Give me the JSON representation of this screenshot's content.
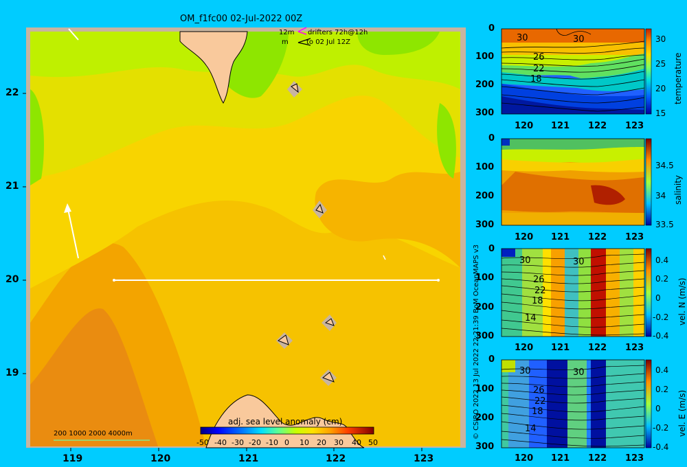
{
  "map": {
    "title": "OM_f1fc00 02-Jul-2022 00Z",
    "drifter_line1_left": "12m",
    "drifter_line1_right": "drifters 72h@12h",
    "drifter_line2_left": "m",
    "drifter_line2_right": "to 02 Jul 12Z",
    "depth_scale": "200  1000  2000  4000m",
    "colorbar": {
      "title": "adj. sea level anomaly (cm)",
      "ticks": [
        "-50",
        "-40",
        "-30",
        "-20",
        "-10",
        "0",
        "10",
        "20",
        "30",
        "40",
        "50"
      ]
    },
    "x_ticks": [
      "119",
      "120",
      "121",
      "122",
      "123"
    ],
    "y_ticks": [
      "22",
      "21",
      "20",
      "19"
    ],
    "credit": "© CSIRO 2022    13 Jul 2022 22:21:39 BoM OceanMAPS v3"
  },
  "panels": [
    {
      "label": "temperature",
      "depth_ticks": [
        "0",
        "100",
        "200",
        "300"
      ],
      "x_ticks": [
        "120",
        "121",
        "122",
        "123"
      ],
      "cbar_ticks": [
        "30",
        "25",
        "20",
        "15"
      ],
      "contour_labels": [
        "30",
        "30",
        "26",
        "22",
        "18"
      ]
    },
    {
      "label": "salinity",
      "depth_ticks": [
        "0",
        "100",
        "200",
        "300"
      ],
      "x_ticks": [
        "120",
        "121",
        "122",
        "123"
      ],
      "cbar_ticks": [
        "34.5",
        "34",
        "33.5"
      ],
      "contour_labels": []
    },
    {
      "label": "vel. N (m/s)",
      "depth_ticks": [
        "0",
        "100",
        "200",
        "300"
      ],
      "x_ticks": [
        "120",
        "121",
        "122",
        "123"
      ],
      "cbar_ticks": [
        "0.4",
        "0.2",
        "0",
        "-0.2",
        "-0.4"
      ],
      "contour_labels": [
        "30",
        "30",
        "26",
        "22",
        "18",
        "14"
      ]
    },
    {
      "label": "vel. E (m/s)",
      "depth_ticks": [
        "0",
        "100",
        "200",
        "300"
      ],
      "x_ticks": [
        "120",
        "121",
        "122",
        "123"
      ],
      "cbar_ticks": [
        "0.4",
        "0.2",
        "0",
        "-0.2",
        "-0.4"
      ],
      "contour_labels": [
        "30",
        "30",
        "26",
        "22",
        "18",
        "14"
      ]
    }
  ],
  "colors": {
    "background": "#00ccff",
    "land": "#f9c99c",
    "shelf": "#c8b4a0"
  }
}
